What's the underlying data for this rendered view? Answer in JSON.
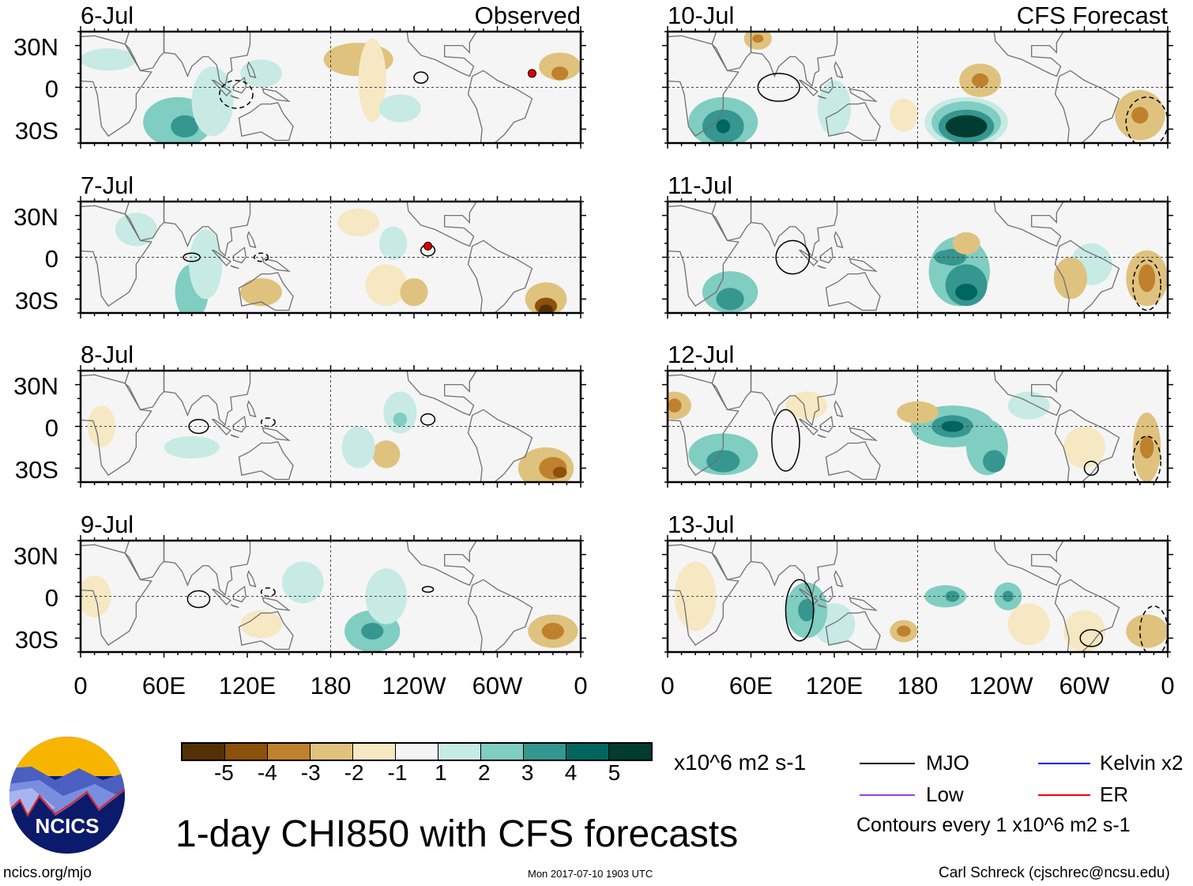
{
  "panels": [
    {
      "date": "6-Jul",
      "header": "Observed"
    },
    {
      "date": "7-Jul"
    },
    {
      "date": "8-Jul"
    },
    {
      "date": "9-Jul"
    },
    {
      "date": "10-Jul",
      "header": "CFS Forecast"
    },
    {
      "date": "11-Jul"
    },
    {
      "date": "12-Jul"
    },
    {
      "date": "13-Jul"
    }
  ],
  "y_ticks": [
    "30N",
    "0",
    "30S"
  ],
  "x_ticks": [
    "0",
    "60E",
    "120E",
    "180",
    "120W",
    "60W",
    "0"
  ],
  "colorbar": {
    "colors": [
      "#543005",
      "#8c510a",
      "#bf812d",
      "#dfc27d",
      "#f6e8c3",
      "#f5f5f5",
      "#c7eae5",
      "#80cdc1",
      "#35978f",
      "#01665e",
      "#003c30"
    ],
    "labels": [
      "-5",
      "-4",
      "-3",
      "-2",
      "-1",
      "1",
      "2",
      "3",
      "4",
      "5"
    ],
    "units": "x10^6 m2 s-1"
  },
  "legend": {
    "items": [
      {
        "label": "MJO",
        "color": "#000000"
      },
      {
        "label": "Kelvin x2",
        "color": "#0000ff"
      },
      {
        "label": "Low",
        "color": "#a040e0"
      },
      {
        "label": "ER",
        "color": "#ff0000"
      }
    ],
    "contours": "Contours every 1 x10^6 m2 s-1"
  },
  "title": "1-day CHI850 with CFS forecasts",
  "logo_text": "NCICS",
  "footer": {
    "url": "ncics.org/mjo",
    "timestamp": "Mon 2017-07-10 1903 UTC",
    "author": "Carl Schreck (cjschrec@ncsu.edu)"
  }
}
